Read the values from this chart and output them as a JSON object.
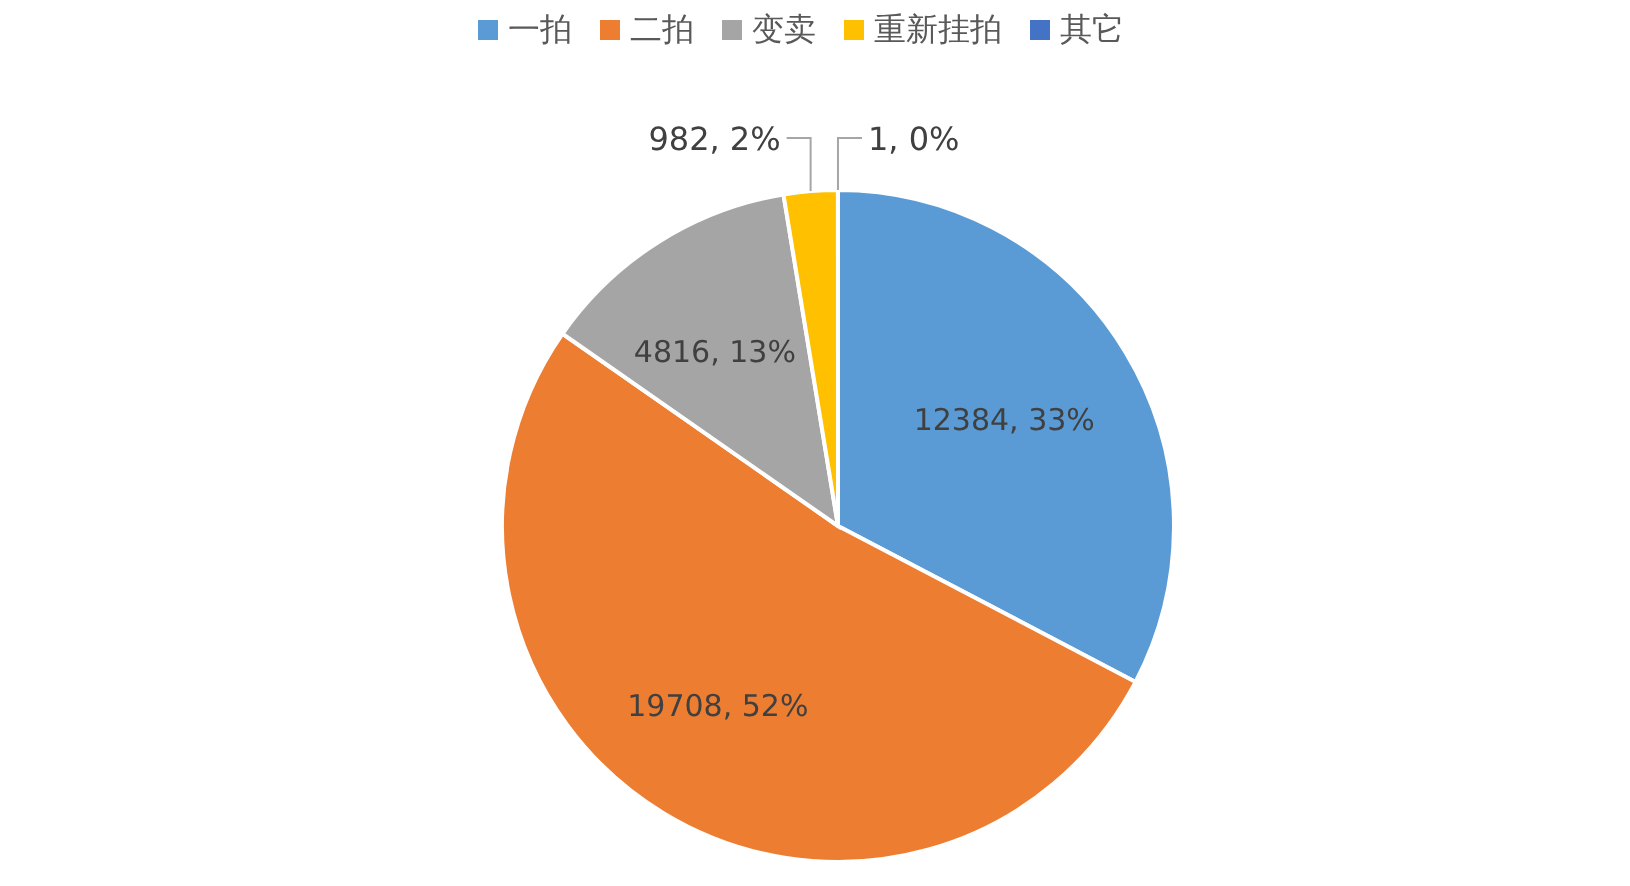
{
  "chart_data": {
    "type": "pie",
    "categories": [
      "一拍",
      "二拍",
      "变卖",
      "重新挂拍",
      "其它"
    ],
    "values": [
      12384,
      19708,
      4816,
      982,
      1
    ],
    "colors": [
      "#5b9bd5",
      "#ed7d31",
      "#a5a5a5",
      "#ffc000",
      "#4472c4"
    ],
    "value_labels": [
      "12384, 33%",
      "19708, 52%",
      "4816, 13%",
      "982, 2%",
      "1, 0%"
    ],
    "legend": "top"
  }
}
